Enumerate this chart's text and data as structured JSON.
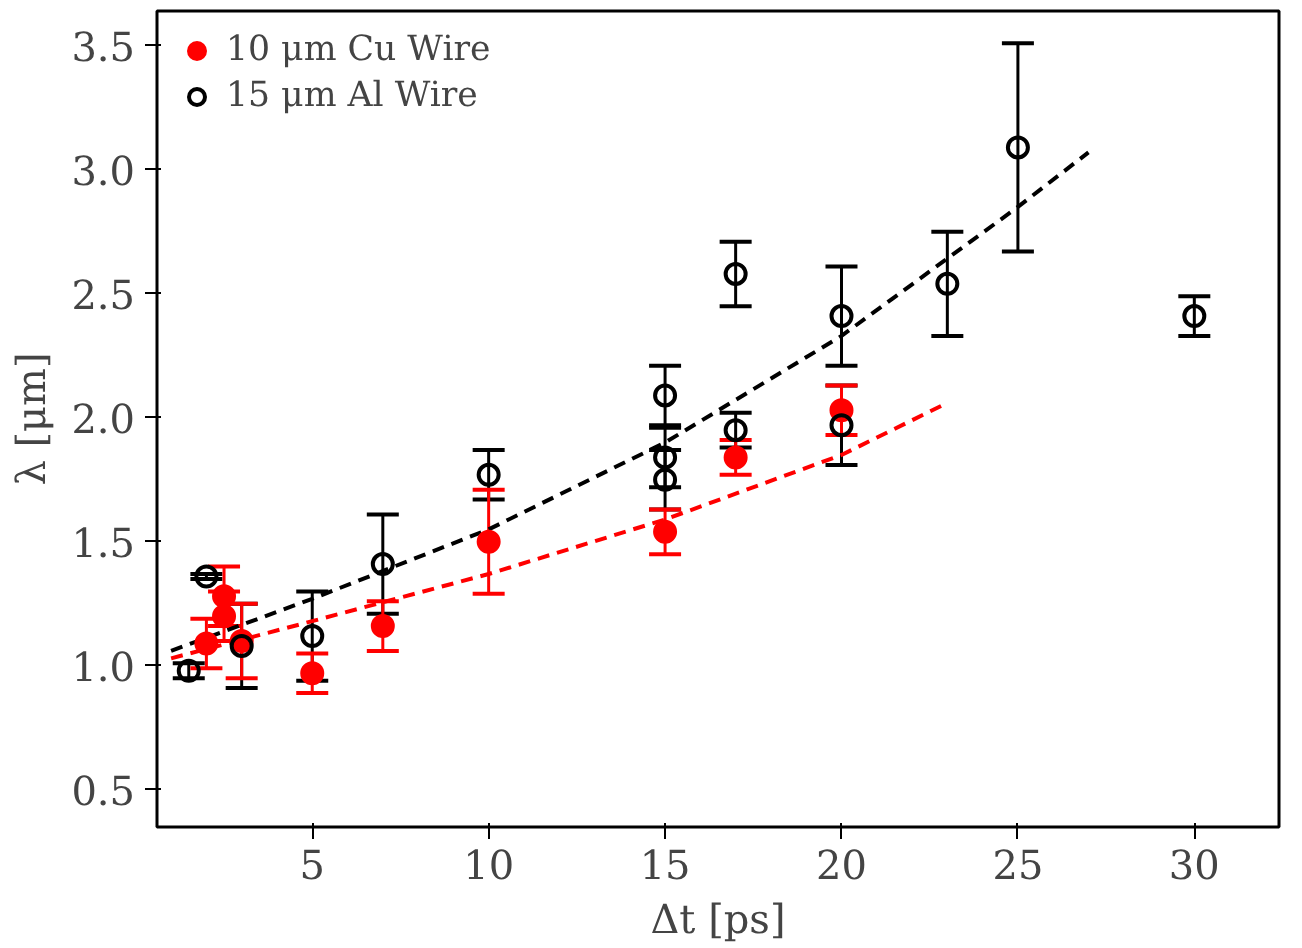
{
  "chart_data": {
    "type": "scatter",
    "xlabel": "Δt [ps]",
    "ylabel": "λ [μm]",
    "xlim": [
      0.6,
      32.4
    ],
    "ylim": [
      0.35,
      3.64
    ],
    "xticks": [
      5,
      10,
      15,
      20,
      25,
      30
    ],
    "yticks": [
      {
        "value": 0.5,
        "label": "0.5"
      },
      {
        "value": 1.0,
        "label": "1.0"
      },
      {
        "value": 1.5,
        "label": "1.5"
      },
      {
        "value": 2.0,
        "label": "2.0"
      },
      {
        "value": 2.5,
        "label": "2.5"
      },
      {
        "value": 3.0,
        "label": "3.0"
      },
      {
        "value": 3.5,
        "label": "3.5"
      }
    ],
    "grid": false,
    "legend": "top left",
    "series": [
      {
        "name": "10 μm Cu Wire",
        "color": "#ff0000",
        "marker": "circle",
        "x": [
          2,
          2.5,
          2.5,
          3,
          5,
          7,
          10,
          15,
          17,
          20
        ],
        "values": [
          1.09,
          1.28,
          1.2,
          1.1,
          0.97,
          1.16,
          1.5,
          1.54,
          1.84,
          2.03
        ],
        "errors": [
          0.1,
          0.12,
          0.1,
          0.15,
          0.08,
          0.1,
          0.21,
          0.09,
          0.07,
          0.1
        ]
      },
      {
        "name": "15 μm Al Wire",
        "color": "#000000",
        "marker": "circle",
        "x": [
          1.5,
          2,
          3,
          5,
          7,
          10,
          15,
          15,
          15,
          17,
          17,
          20,
          20,
          23,
          25,
          30
        ],
        "values": [
          0.98,
          1.36,
          1.08,
          1.12,
          1.41,
          1.77,
          1.75,
          1.84,
          2.09,
          2.58,
          1.95,
          2.41,
          1.97,
          2.54,
          3.09,
          2.41
        ],
        "errors": [
          0.03,
          0.01,
          0.17,
          0.18,
          0.2,
          0.1,
          0.12,
          0.12,
          0.12,
          0.13,
          0.07,
          0.2,
          0.16,
          0.21,
          0.42,
          0.08
        ]
      },
      {
        "type": "line",
        "color": "#ff0000",
        "line_style": "dashed",
        "x": [
          1,
          5,
          10,
          15,
          20,
          23
        ],
        "values": [
          1.03,
          1.18,
          1.37,
          1.59,
          1.85,
          2.06
        ]
      },
      {
        "type": "line",
        "color": "#000000",
        "line_style": "dashed",
        "x": [
          1,
          5,
          10,
          15,
          20,
          25,
          27
        ],
        "values": [
          1.06,
          1.27,
          1.55,
          1.9,
          2.33,
          2.85,
          3.07
        ]
      }
    ]
  }
}
